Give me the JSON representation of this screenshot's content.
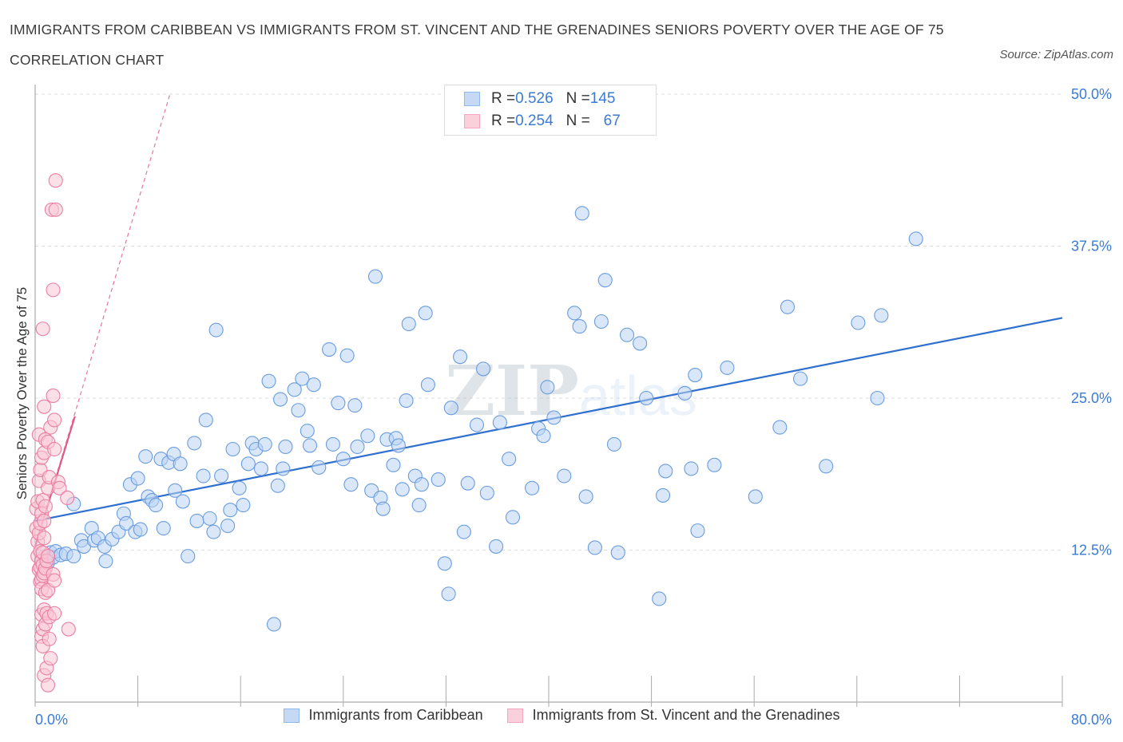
{
  "title": "IMMIGRANTS FROM CARIBBEAN VS IMMIGRANTS FROM ST. VINCENT AND THE GRENADINES SENIORS POVERTY OVER THE AGE OF 75 CORRELATION CHART",
  "source": "Source: ZipAtlas.com",
  "watermark": "ZIPatlas",
  "legend_top": {
    "rows": [
      {
        "r_label": "R = ",
        "r_value": "0.526",
        "n_label": "N = ",
        "n_value": "145",
        "color": "#8fb8ee"
      },
      {
        "r_label": "R = ",
        "r_value": "0.254",
        "n_label": "N = ",
        "n_value": "67",
        "color": "#f5a6be"
      }
    ]
  },
  "legend_bottom": {
    "items": [
      {
        "label": "Immigrants from Caribbean",
        "color": "#8fb8ee"
      },
      {
        "label": "Immigrants from St. Vincent and the Grenadines",
        "color": "#f5a6be"
      }
    ]
  },
  "chart_data": {
    "type": "scatter",
    "title": "IMMIGRANTS FROM CARIBBEAN VS IMMIGRANTS FROM ST. VINCENT AND THE GRENADINES SENIORS POVERTY OVER THE AGE OF 75 CORRELATION CHART",
    "xlabel": "",
    "ylabel": "Seniors Poverty Over the Age of 75",
    "xlim": [
      0,
      80
    ],
    "ylim": [
      0,
      50
    ],
    "x_tick_labels": [
      "0.0%",
      "80.0%"
    ],
    "y_tick_values": [
      12.5,
      25.0,
      37.5,
      50.0
    ],
    "y_tick_labels": [
      "12.5%",
      "25.0%",
      "37.5%",
      "50.0%"
    ],
    "grid": true,
    "legend_placement": "bottom",
    "colors": {
      "caribbean": "#3a7bd5",
      "stvincent": "#e05a8a"
    },
    "series": [
      {
        "name": "Immigrants from Caribbean",
        "R": 0.526,
        "N": 145,
        "trendline": {
          "x": [
            0,
            80
          ],
          "y": [
            14.9,
            31.6
          ]
        },
        "points": [
          [
            0.5,
            11.8
          ],
          [
            0.8,
            12.0
          ],
          [
            1.0,
            11.5
          ],
          [
            1.2,
            12.3
          ],
          [
            1.4,
            11.9
          ],
          [
            1.6,
            12.4
          ],
          [
            2.0,
            12.1
          ],
          [
            2.4,
            12.2
          ],
          [
            3.0,
            12.0
          ],
          [
            3.0,
            16.3
          ],
          [
            3.6,
            13.3
          ],
          [
            3.8,
            12.8
          ],
          [
            4.4,
            14.3
          ],
          [
            4.6,
            13.3
          ],
          [
            4.9,
            13.5
          ],
          [
            5.4,
            12.8
          ],
          [
            5.5,
            11.6
          ],
          [
            6.0,
            13.4
          ],
          [
            6.5,
            14.0
          ],
          [
            6.9,
            15.5
          ],
          [
            7.1,
            14.7
          ],
          [
            7.4,
            17.9
          ],
          [
            7.8,
            14.0
          ],
          [
            8.0,
            18.4
          ],
          [
            8.2,
            14.2
          ],
          [
            8.6,
            20.2
          ],
          [
            8.8,
            16.9
          ],
          [
            9.1,
            16.6
          ],
          [
            9.4,
            16.2
          ],
          [
            9.8,
            20.0
          ],
          [
            10.0,
            14.3
          ],
          [
            10.4,
            19.7
          ],
          [
            10.8,
            20.4
          ],
          [
            10.9,
            17.4
          ],
          [
            11.3,
            19.6
          ],
          [
            11.5,
            16.5
          ],
          [
            11.9,
            12.0
          ],
          [
            12.4,
            21.3
          ],
          [
            12.6,
            14.9
          ],
          [
            13.1,
            18.6
          ],
          [
            13.3,
            23.2
          ],
          [
            13.6,
            15.1
          ],
          [
            13.9,
            14.0
          ],
          [
            14.1,
            30.6
          ],
          [
            14.5,
            18.6
          ],
          [
            15.0,
            14.5
          ],
          [
            15.2,
            15.8
          ],
          [
            15.4,
            20.8
          ],
          [
            15.9,
            17.6
          ],
          [
            16.2,
            16.2
          ],
          [
            16.6,
            19.6
          ],
          [
            16.9,
            21.3
          ],
          [
            17.2,
            20.8
          ],
          [
            17.6,
            19.2
          ],
          [
            17.9,
            21.2
          ],
          [
            18.2,
            26.4
          ],
          [
            18.6,
            6.4
          ],
          [
            18.9,
            17.8
          ],
          [
            19.1,
            24.9
          ],
          [
            19.3,
            19.2
          ],
          [
            19.5,
            21.0
          ],
          [
            20.2,
            25.7
          ],
          [
            20.5,
            24.0
          ],
          [
            20.8,
            26.6
          ],
          [
            21.2,
            22.3
          ],
          [
            21.4,
            21.1
          ],
          [
            21.7,
            26.1
          ],
          [
            22.1,
            19.3
          ],
          [
            22.9,
            29.0
          ],
          [
            23.2,
            21.2
          ],
          [
            23.6,
            24.6
          ],
          [
            24.0,
            20.0
          ],
          [
            24.3,
            28.5
          ],
          [
            24.6,
            17.9
          ],
          [
            24.9,
            24.4
          ],
          [
            25.1,
            21.0
          ],
          [
            25.9,
            21.9
          ],
          [
            26.2,
            17.4
          ],
          [
            26.5,
            35.0
          ],
          [
            26.9,
            16.8
          ],
          [
            27.1,
            15.9
          ],
          [
            27.4,
            21.6
          ],
          [
            27.9,
            19.5
          ],
          [
            28.1,
            21.7
          ],
          [
            28.3,
            21.1
          ],
          [
            28.6,
            17.5
          ],
          [
            28.9,
            24.8
          ],
          [
            29.1,
            31.1
          ],
          [
            29.6,
            18.6
          ],
          [
            29.9,
            16.2
          ],
          [
            30.1,
            17.9
          ],
          [
            30.4,
            32.0
          ],
          [
            30.6,
            26.1
          ],
          [
            31.4,
            18.3
          ],
          [
            31.9,
            11.4
          ],
          [
            32.2,
            8.9
          ],
          [
            32.4,
            24.2
          ],
          [
            33.1,
            28.4
          ],
          [
            33.4,
            14.0
          ],
          [
            33.7,
            18.0
          ],
          [
            34.4,
            22.8
          ],
          [
            34.9,
            27.4
          ],
          [
            35.2,
            17.2
          ],
          [
            35.9,
            12.8
          ],
          [
            36.2,
            23.0
          ],
          [
            36.9,
            20.0
          ],
          [
            37.2,
            15.2
          ],
          [
            38.7,
            17.6
          ],
          [
            39.2,
            22.5
          ],
          [
            39.6,
            21.9
          ],
          [
            39.9,
            25.9
          ],
          [
            40.4,
            23.4
          ],
          [
            41.2,
            18.6
          ],
          [
            42.0,
            32.0
          ],
          [
            42.4,
            30.9
          ],
          [
            42.6,
            40.2
          ],
          [
            42.9,
            16.9
          ],
          [
            43.6,
            12.7
          ],
          [
            44.1,
            31.3
          ],
          [
            44.4,
            34.7
          ],
          [
            45.1,
            21.2
          ],
          [
            45.4,
            12.3
          ],
          [
            46.1,
            30.2
          ],
          [
            47.1,
            29.5
          ],
          [
            47.6,
            25.0
          ],
          [
            48.6,
            8.5
          ],
          [
            48.9,
            17.0
          ],
          [
            49.1,
            19.0
          ],
          [
            50.6,
            25.4
          ],
          [
            51.1,
            19.2
          ],
          [
            51.4,
            26.9
          ],
          [
            51.6,
            14.1
          ],
          [
            52.9,
            19.5
          ],
          [
            53.9,
            27.5
          ],
          [
            56.1,
            16.9
          ],
          [
            58.0,
            22.6
          ],
          [
            58.6,
            32.5
          ],
          [
            59.6,
            26.6
          ],
          [
            61.6,
            19.4
          ],
          [
            64.1,
            31.2
          ],
          [
            65.6,
            25.0
          ],
          [
            65.9,
            31.8
          ],
          [
            68.6,
            38.1
          ]
        ]
      },
      {
        "name": "Immigrants from St. Vincent and the Grenadines",
        "R": 0.254,
        "N": 67,
        "trendline": {
          "x": [
            0,
            3.1
          ],
          "y": [
            12.8,
            23.5
          ]
        },
        "trendline_extended": {
          "x": [
            0,
            10.5
          ],
          "y": [
            12.8,
            50.0
          ]
        },
        "points": [
          [
            0.1,
            14.3
          ],
          [
            0.1,
            15.9
          ],
          [
            0.2,
            13.2
          ],
          [
            0.2,
            12.0
          ],
          [
            0.2,
            16.5
          ],
          [
            0.3,
            18.2
          ],
          [
            0.3,
            22.0
          ],
          [
            0.3,
            10.9
          ],
          [
            0.3,
            13.9
          ],
          [
            0.4,
            19.1
          ],
          [
            0.4,
            14.7
          ],
          [
            0.4,
            12.4
          ],
          [
            0.4,
            11.1
          ],
          [
            0.4,
            9.9
          ],
          [
            0.5,
            20.1
          ],
          [
            0.5,
            15.5
          ],
          [
            0.5,
            11.6
          ],
          [
            0.5,
            10.1
          ],
          [
            0.5,
            9.3
          ],
          [
            0.5,
            7.2
          ],
          [
            0.5,
            5.4
          ],
          [
            0.6,
            30.7
          ],
          [
            0.6,
            16.6
          ],
          [
            0.6,
            12.3
          ],
          [
            0.6,
            11.3
          ],
          [
            0.6,
            10.4
          ],
          [
            0.6,
            6.0
          ],
          [
            0.6,
            4.6
          ],
          [
            0.7,
            24.3
          ],
          [
            0.7,
            20.5
          ],
          [
            0.7,
            14.9
          ],
          [
            0.7,
            13.5
          ],
          [
            0.7,
            10.6
          ],
          [
            0.7,
            7.6
          ],
          [
            0.7,
            2.2
          ],
          [
            0.8,
            21.6
          ],
          [
            0.8,
            16.1
          ],
          [
            0.8,
            11.0
          ],
          [
            0.8,
            9.0
          ],
          [
            0.8,
            6.4
          ],
          [
            0.9,
            11.6
          ],
          [
            0.9,
            7.3
          ],
          [
            0.9,
            2.8
          ],
          [
            1.0,
            21.4
          ],
          [
            1.0,
            17.6
          ],
          [
            1.0,
            12.0
          ],
          [
            1.0,
            9.2
          ],
          [
            1.0,
            1.4
          ],
          [
            1.1,
            18.5
          ],
          [
            1.1,
            7.0
          ],
          [
            1.1,
            5.2
          ],
          [
            1.2,
            22.6
          ],
          [
            1.2,
            3.6
          ],
          [
            1.3,
            40.5
          ],
          [
            1.4,
            33.9
          ],
          [
            1.4,
            25.2
          ],
          [
            1.4,
            10.5
          ],
          [
            1.5,
            23.2
          ],
          [
            1.5,
            20.8
          ],
          [
            1.5,
            10.0
          ],
          [
            1.5,
            7.3
          ],
          [
            1.6,
            42.9
          ],
          [
            1.6,
            40.5
          ],
          [
            1.8,
            18.1
          ],
          [
            1.9,
            17.6
          ],
          [
            2.5,
            16.8
          ],
          [
            2.6,
            6.0
          ]
        ]
      }
    ]
  }
}
